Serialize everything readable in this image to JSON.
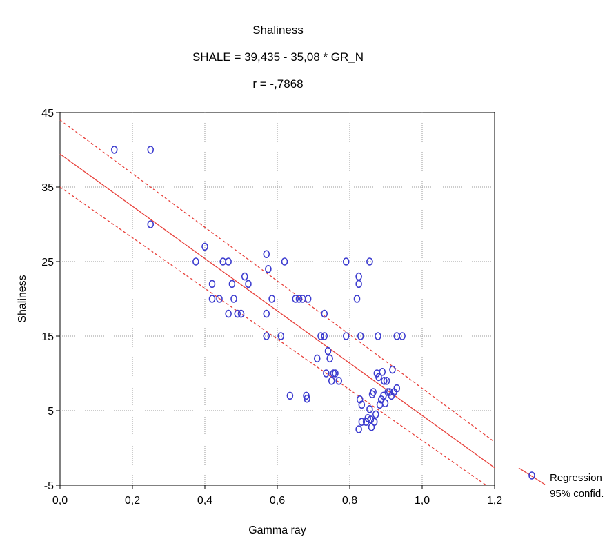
{
  "chart_data": {
    "type": "scatter",
    "title": [
      "Shaliness",
      "SHALE = 39,435 - 35,08 * GR_N",
      "r = -,7868"
    ],
    "xlabel": "Gamma ray",
    "ylabel": "Shaliness",
    "xlim": [
      0.0,
      1.2
    ],
    "ylim": [
      -5,
      45
    ],
    "xticks": [
      0.0,
      0.2,
      0.4,
      0.6,
      0.8,
      1.0,
      1.2
    ],
    "xtick_labels": [
      "0,0",
      "0,2",
      "0,4",
      "0,6",
      "0,8",
      "1,0",
      "1,2"
    ],
    "yticks": [
      -5,
      5,
      15,
      25,
      35,
      45
    ],
    "ytick_labels": [
      "-5",
      "5",
      "15",
      "25",
      "35",
      "45"
    ],
    "grid": true,
    "regression": {
      "intercept": 39.435,
      "slope": -35.08
    },
    "confidence_band": {
      "upper": [
        [
          0.0,
          44.0
        ],
        [
          1.2,
          0.8
        ]
      ],
      "lower": [
        [
          0.0,
          35.0
        ],
        [
          1.2,
          -5.8
        ]
      ]
    },
    "legend": {
      "position": "bottom-right",
      "entries": [
        "Regression",
        "95% confid."
      ]
    },
    "colors": {
      "points": "#3c3ccf",
      "regression": "#e8413b"
    },
    "points": [
      [
        0.15,
        40
      ],
      [
        0.25,
        40
      ],
      [
        0.25,
        30
      ],
      [
        0.375,
        25
      ],
      [
        0.4,
        27
      ],
      [
        0.42,
        22
      ],
      [
        0.42,
        20
      ],
      [
        0.44,
        20
      ],
      [
        0.45,
        25
      ],
      [
        0.465,
        25
      ],
      [
        0.465,
        18
      ],
      [
        0.475,
        22
      ],
      [
        0.48,
        20
      ],
      [
        0.49,
        18
      ],
      [
        0.5,
        18
      ],
      [
        0.51,
        23
      ],
      [
        0.52,
        22
      ],
      [
        0.57,
        26
      ],
      [
        0.57,
        18
      ],
      [
        0.57,
        15
      ],
      [
        0.575,
        24
      ],
      [
        0.585,
        20
      ],
      [
        0.61,
        15
      ],
      [
        0.62,
        25
      ],
      [
        0.635,
        7
      ],
      [
        0.65,
        20
      ],
      [
        0.66,
        20
      ],
      [
        0.67,
        20
      ],
      [
        0.685,
        20
      ],
      [
        0.68,
        7
      ],
      [
        0.682,
        6.6
      ],
      [
        0.71,
        12
      ],
      [
        0.72,
        15
      ],
      [
        0.73,
        15
      ],
      [
        0.73,
        18
      ],
      [
        0.735,
        10
      ],
      [
        0.74,
        13
      ],
      [
        0.745,
        12
      ],
      [
        0.75,
        9
      ],
      [
        0.755,
        10
      ],
      [
        0.76,
        10
      ],
      [
        0.77,
        9
      ],
      [
        0.79,
        25
      ],
      [
        0.79,
        15
      ],
      [
        0.82,
        20
      ],
      [
        0.825,
        23
      ],
      [
        0.825,
        22
      ],
      [
        0.825,
        2.5
      ],
      [
        0.828,
        6.5
      ],
      [
        0.83,
        15
      ],
      [
        0.833,
        5.8
      ],
      [
        0.833,
        3.5
      ],
      [
        0.845,
        3.5
      ],
      [
        0.85,
        4
      ],
      [
        0.855,
        25
      ],
      [
        0.855,
        5.2
      ],
      [
        0.858,
        3.8
      ],
      [
        0.86,
        2.8
      ],
      [
        0.862,
        7.2
      ],
      [
        0.865,
        7.5
      ],
      [
        0.868,
        3.5
      ],
      [
        0.872,
        4.5
      ],
      [
        0.875,
        10
      ],
      [
        0.878,
        15
      ],
      [
        0.88,
        9.5
      ],
      [
        0.883,
        5.8
      ],
      [
        0.887,
        6.5
      ],
      [
        0.89,
        10.2
      ],
      [
        0.893,
        7
      ],
      [
        0.895,
        9
      ],
      [
        0.898,
        6
      ],
      [
        0.902,
        9
      ],
      [
        0.905,
        7.5
      ],
      [
        0.91,
        7.5
      ],
      [
        0.915,
        7
      ],
      [
        0.918,
        10.5
      ],
      [
        0.922,
        7.5
      ],
      [
        0.93,
        8
      ],
      [
        0.93,
        15
      ],
      [
        0.945,
        15
      ]
    ]
  }
}
